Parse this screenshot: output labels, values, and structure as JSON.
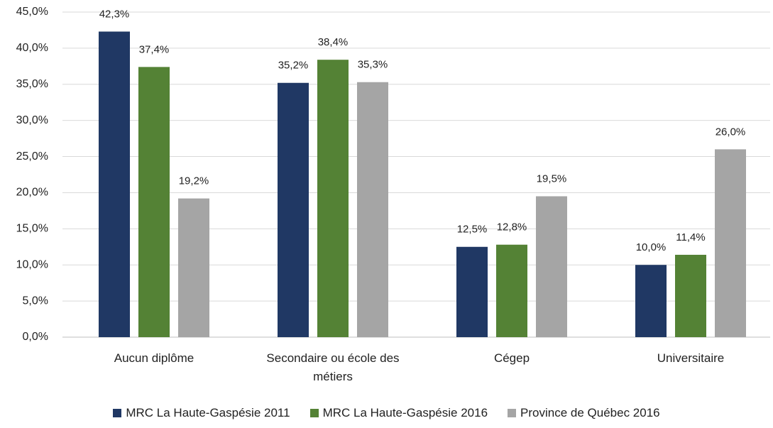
{
  "chart_data": {
    "type": "bar",
    "categories": [
      "Aucun diplôme",
      "Secondaire ou école des métiers",
      "Cégep",
      "Universitaire"
    ],
    "series": [
      {
        "name": "MRC La Haute-Gaspésie 2011",
        "color": "#203864",
        "values": [
          42.3,
          35.2,
          12.5,
          10.0
        ],
        "value_labels": [
          "42,3%",
          "35,2%",
          "12,5%",
          "10,0%"
        ]
      },
      {
        "name": "MRC La Haute-Gaspésie 2016",
        "color": "#548235",
        "values": [
          37.4,
          38.4,
          12.8,
          11.4
        ],
        "value_labels": [
          "37,4%",
          "38,4%",
          "12,8%",
          "11,4%"
        ]
      },
      {
        "name": "Province de Québec 2016",
        "color": "#a5a5a5",
        "values": [
          19.2,
          35.3,
          19.5,
          26.0
        ],
        "value_labels": [
          "19,2%",
          "35,3%",
          "19,5%",
          "26,0%"
        ]
      }
    ],
    "ylim": [
      0,
      45
    ],
    "yticks": [
      {
        "value": 0,
        "label": "0,0%"
      },
      {
        "value": 5,
        "label": "5,0%"
      },
      {
        "value": 10,
        "label": "10,0%"
      },
      {
        "value": 15,
        "label": "15,0%"
      },
      {
        "value": 20,
        "label": "20,0%"
      },
      {
        "value": 25,
        "label": "25,0%"
      },
      {
        "value": 30,
        "label": "30,0%"
      },
      {
        "value": 35,
        "label": "35,0%"
      },
      {
        "value": 40,
        "label": "40,0%"
      },
      {
        "value": 45,
        "label": "45,0%"
      }
    ],
    "grid": true,
    "legend": "bottom"
  }
}
